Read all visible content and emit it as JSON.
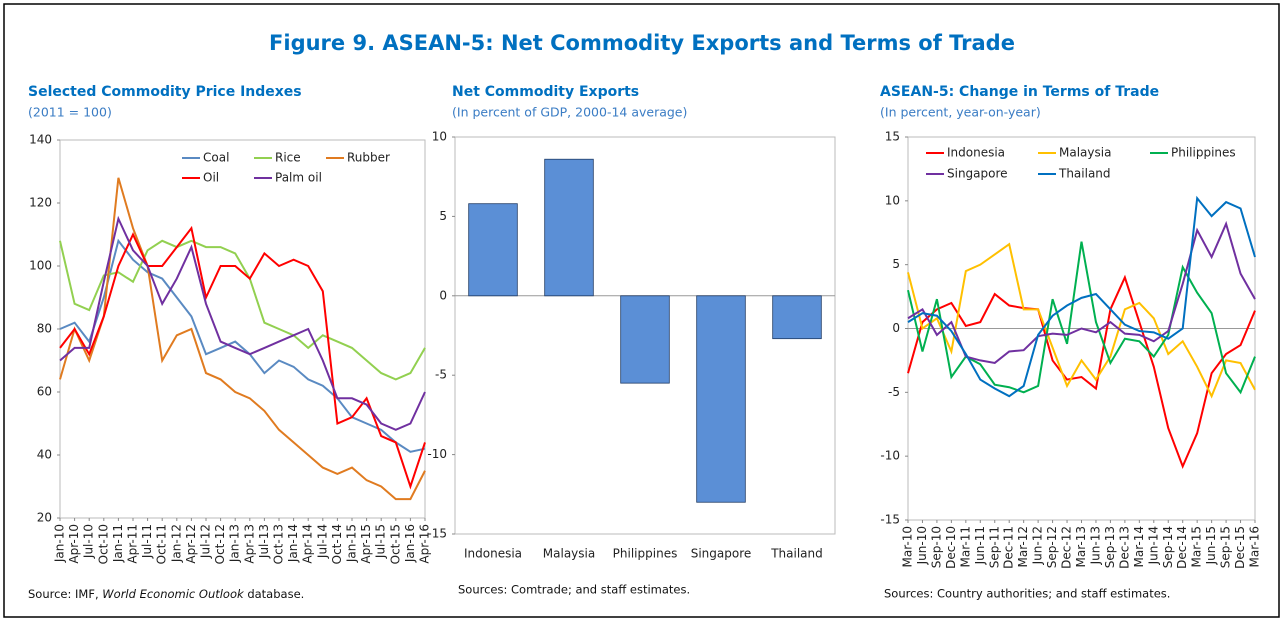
{
  "title": "Figure 9. ASEAN-5: Net Commodity Exports and Terms of Trade",
  "chart_data": [
    {
      "type": "line",
      "title": "Selected Commodity Price Indexes",
      "subtitle": "(2011 = 100)",
      "source": [
        "Source: IMF, ",
        "World Economic Outlook",
        " database."
      ],
      "categories": [
        "Jan-10",
        "Apr-10",
        "Jul-10",
        "Oct-10",
        "Jan-11",
        "Apr-11",
        "Jul-11",
        "Oct-11",
        "Jan-12",
        "Apr-12",
        "Jul-12",
        "Oct-12",
        "Jan-13",
        "Apr-13",
        "Jul-13",
        "Oct-13",
        "Jan-14",
        "Apr-14",
        "Jul-14",
        "Oct-14",
        "Jan-15",
        "Apr-15",
        "Jul-15",
        "Oct-15",
        "Jan-16",
        "Apr-16"
      ],
      "ylim": [
        20,
        140
      ],
      "yticks": [
        20,
        40,
        60,
        80,
        100,
        120,
        140
      ],
      "series": [
        {
          "name": "Coal",
          "color": "#5a8ac2",
          "values": [
            80,
            82,
            76,
            90,
            108,
            102,
            98,
            96,
            90,
            84,
            72,
            74,
            76,
            72,
            66,
            70,
            68,
            64,
            62,
            58,
            52,
            50,
            48,
            44,
            41,
            42
          ]
        },
        {
          "name": "Rice",
          "color": "#92d050",
          "values": [
            108,
            88,
            86,
            97,
            98,
            95,
            105,
            108,
            106,
            108,
            106,
            106,
            104,
            96,
            82,
            80,
            78,
            74,
            78,
            76,
            74,
            70,
            66,
            64,
            66,
            74
          ]
        },
        {
          "name": "Rubber",
          "color": "#e07b20",
          "values": [
            64,
            80,
            70,
            84,
            128,
            112,
            100,
            70,
            78,
            80,
            66,
            64,
            60,
            58,
            54,
            48,
            44,
            40,
            36,
            34,
            36,
            32,
            30,
            26,
            26,
            35
          ]
        },
        {
          "name": "Oil",
          "color": "#ff0000",
          "values": [
            74,
            80,
            72,
            84,
            100,
            110,
            100,
            100,
            106,
            112,
            90,
            100,
            100,
            96,
            104,
            100,
            102,
            100,
            92,
            50,
            52,
            58,
            46,
            44,
            30,
            44
          ]
        },
        {
          "name": "Palm oil",
          "color": "#7030a0",
          "values": [
            70,
            74,
            74,
            95,
            115,
            105,
            100,
            88,
            96,
            106,
            88,
            76,
            74,
            72,
            74,
            76,
            78,
            80,
            70,
            58,
            58,
            56,
            50,
            48,
            50,
            60
          ]
        }
      ]
    },
    {
      "type": "bar",
      "title": "Net Commodity Exports",
      "subtitle": "(In percent of GDP, 2000-14 average)",
      "source": [
        "Sources: Comtrade; and staff estimates."
      ],
      "categories": [
        "Indonesia",
        "Malaysia",
        "Philippines",
        "Singapore",
        "Thailand"
      ],
      "values": [
        5.8,
        8.6,
        -5.5,
        -13,
        -2.7
      ],
      "color": "#5b8fd6",
      "ylim": [
        -15,
        10
      ],
      "yticks": [
        -15,
        -10,
        -5,
        0,
        5,
        10
      ]
    },
    {
      "type": "line",
      "title": "ASEAN-5: Change in Terms of Trade",
      "subtitle": "(In percent, year-on-year)",
      "source": [
        "Sources: Country authorities; and staff estimates."
      ],
      "categories": [
        "Mar-10",
        "Jun-10",
        "Sep-10",
        "Dec-10",
        "Mar-11",
        "Jun-11",
        "Sep-11",
        "Dec-11",
        "Mar-12",
        "Jun-12",
        "Sep-12",
        "Dec-12",
        "Mar-13",
        "Jun-13",
        "Sep-13",
        "Dec-13",
        "Mar-14",
        "Jun-14",
        "Sep-14",
        "Dec-14",
        "Mar-15",
        "Jun-15",
        "Sep-15",
        "Dec-15",
        "Mar-16"
      ],
      "ylim": [
        -15,
        15
      ],
      "yticks": [
        -15,
        -10,
        -5,
        0,
        5,
        10,
        15
      ],
      "series": [
        {
          "name": "Indonesia",
          "color": "#ff0000",
          "values": [
            -3.5,
            0.5,
            1.5,
            2,
            0.2,
            0.5,
            2.7,
            1.8,
            1.6,
            1.5,
            -2.5,
            -4,
            -3.8,
            -4.7,
            1.5,
            4,
            0.5,
            -3,
            -7.8,
            -10.8,
            -8.2,
            -3.5,
            -2,
            -1.3,
            1.4
          ]
        },
        {
          "name": "Malaysia",
          "color": "#ffc000",
          "values": [
            4.4,
            0,
            0.8,
            -1.8,
            4.5,
            5,
            5.8,
            6.6,
            1.5,
            1.5,
            -1.5,
            -4.5,
            -2.5,
            -4,
            -2.2,
            1.5,
            2,
            0.8,
            -2,
            -1,
            -3,
            -5.3,
            -2.5,
            -2.7,
            -4.8
          ]
        },
        {
          "name": "Philippines",
          "color": "#00b050",
          "values": [
            3,
            -1.8,
            2.3,
            -3.8,
            -2.2,
            -2.8,
            -4.4,
            -4.6,
            -5,
            -4.5,
            2.3,
            -1.2,
            6.8,
            0.5,
            -2.7,
            -0.8,
            -1,
            -2.2,
            -0.5,
            4.8,
            2.8,
            1.2,
            -3.5,
            -5,
            -2.2
          ]
        },
        {
          "name": "Singapore",
          "color": "#7030a0",
          "values": [
            0.8,
            1.5,
            -0.5,
            0.5,
            -2.2,
            -2.5,
            -2.7,
            -1.8,
            -1.7,
            -0.6,
            -0.4,
            -0.5,
            0,
            -0.3,
            0.5,
            -0.4,
            -0.5,
            -1,
            -0.2,
            3.5,
            7.7,
            5.6,
            8.2,
            4.3,
            2.3
          ]
        },
        {
          "name": "Thailand",
          "color": "#0070c0",
          "values": [
            0.5,
            1.2,
            1,
            -0.2,
            -2,
            -4,
            -4.7,
            -5.3,
            -4.5,
            -0.5,
            1,
            1.8,
            2.4,
            2.7,
            1.5,
            0.3,
            -0.2,
            -0.3,
            -0.8,
            0,
            10.2,
            8.8,
            9.9,
            9.4,
            5.6
          ]
        }
      ]
    }
  ]
}
